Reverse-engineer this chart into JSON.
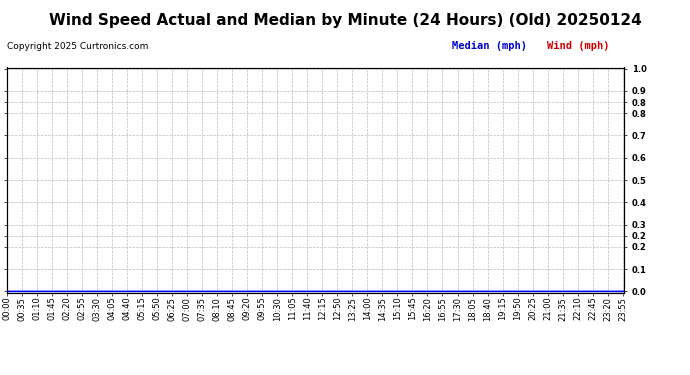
{
  "title": "Wind Speed Actual and Median by Minute (24 Hours) (Old) 20250124",
  "copyright_text": "Copyright 2025 Curtronics.com",
  "legend_median_label": "Median (mph)",
  "legend_wind_label": "Wind (mph)",
  "legend_median_color": "#0000cc",
  "legend_wind_color": "#cc0000",
  "title_fontsize": 11,
  "copyright_fontsize": 6.5,
  "legend_fontsize": 7.5,
  "tick_fontsize": 6,
  "background_color": "#ffffff",
  "plot_background_color": "#ffffff",
  "grid_color": "#bbbbbb",
  "line_color": "#0000ff",
  "ylim_min": 0.0,
  "ylim_max": 1.0,
  "num_minutes": 1440,
  "wind_value": 0.0,
  "tick_interval_minutes": 35,
  "ytick_positions": [
    0.0,
    0.1,
    0.2,
    0.25,
    0.3,
    0.4,
    0.5,
    0.6,
    0.7,
    0.8,
    0.85,
    0.9,
    1.0
  ],
  "ytick_labels": [
    "0.0",
    "0.1",
    "0.2",
    "0.2",
    "0.3",
    "0.4",
    "0.5",
    "0.6",
    "0.7",
    "0.8",
    "0.8",
    "0.9",
    "1.0"
  ]
}
